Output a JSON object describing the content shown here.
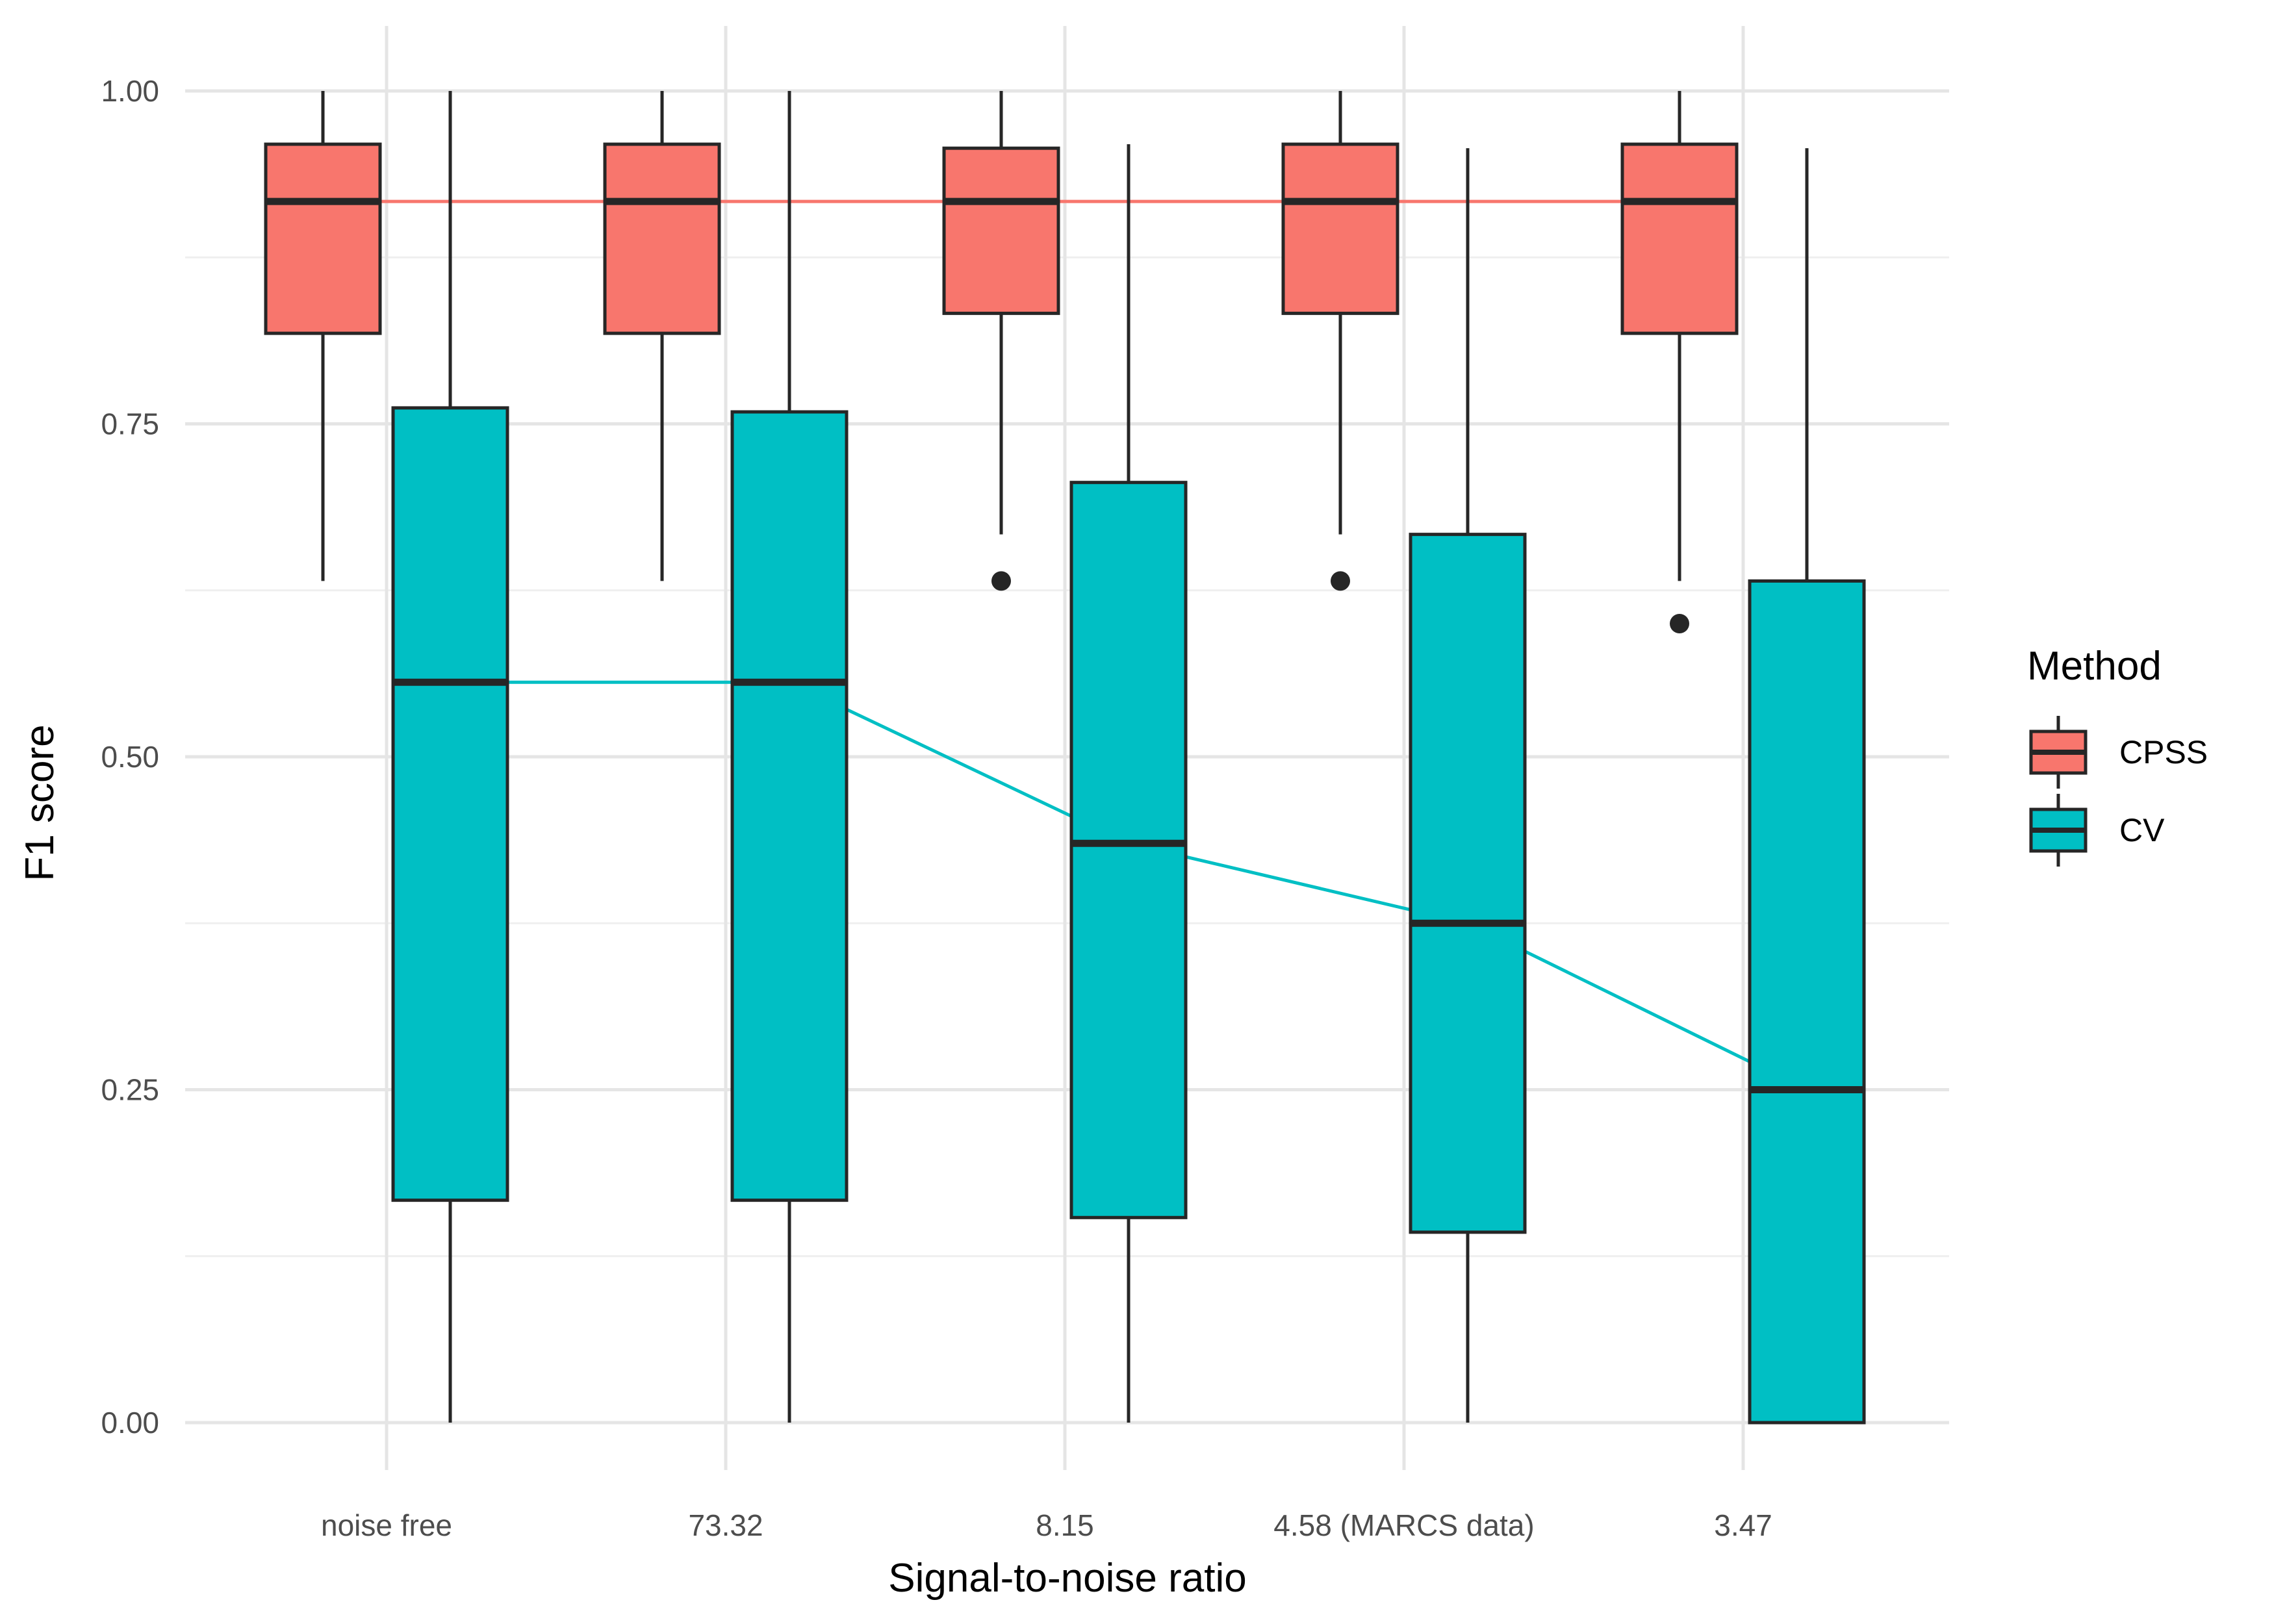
{
  "chart_data": {
    "type": "boxplot",
    "xlabel": "Signal-to-noise ratio",
    "ylabel": "F1 score",
    "ylim": [
      -0.03,
      1.03
    ],
    "yticks": [
      0.0,
      0.25,
      0.5,
      0.75,
      1.0
    ],
    "ytick_labels": [
      "0.00",
      "0.25",
      "0.50",
      "0.75",
      "1.00"
    ],
    "categories": [
      "noise free",
      "73.32",
      "8.15",
      "4.58 (MARCS data)",
      "3.47"
    ],
    "grid": true,
    "legend": {
      "title": "Method",
      "position": "right"
    },
    "series": [
      {
        "name": "CPSS",
        "color": "#F8766D",
        "boxes": [
          {
            "whisker_low": 0.632,
            "q1": 0.818,
            "median": 0.917,
            "q3": 0.96,
            "whisker_high": 1.0,
            "outliers": []
          },
          {
            "whisker_low": 0.632,
            "q1": 0.818,
            "median": 0.917,
            "q3": 0.96,
            "whisker_high": 1.0,
            "outliers": []
          },
          {
            "whisker_low": 0.667,
            "q1": 0.833,
            "median": 0.917,
            "q3": 0.957,
            "whisker_high": 1.0,
            "outliers": [
              0.632
            ]
          },
          {
            "whisker_low": 0.667,
            "q1": 0.833,
            "median": 0.917,
            "q3": 0.96,
            "whisker_high": 1.0,
            "outliers": [
              0.632
            ]
          },
          {
            "whisker_low": 0.632,
            "q1": 0.818,
            "median": 0.917,
            "q3": 0.96,
            "whisker_high": 1.0,
            "outliers": [
              0.6
            ]
          }
        ]
      },
      {
        "name": "CV",
        "color": "#00BFC4",
        "boxes": [
          {
            "whisker_low": 0.0,
            "q1": 0.167,
            "median": 0.556,
            "q3": 0.762,
            "whisker_high": 1.0,
            "outliers": []
          },
          {
            "whisker_low": 0.0,
            "q1": 0.167,
            "median": 0.556,
            "q3": 0.759,
            "whisker_high": 1.0,
            "outliers": []
          },
          {
            "whisker_low": 0.0,
            "q1": 0.154,
            "median": 0.435,
            "q3": 0.706,
            "whisker_high": 0.96,
            "outliers": []
          },
          {
            "whisker_low": 0.0,
            "q1": 0.143,
            "median": 0.375,
            "q3": 0.667,
            "whisker_high": 0.957,
            "outliers": []
          },
          {
            "whisker_low": 0.0,
            "q1": 0.0,
            "median": 0.25,
            "q3": 0.632,
            "whisker_high": 0.957,
            "outliers": []
          }
        ]
      }
    ]
  }
}
